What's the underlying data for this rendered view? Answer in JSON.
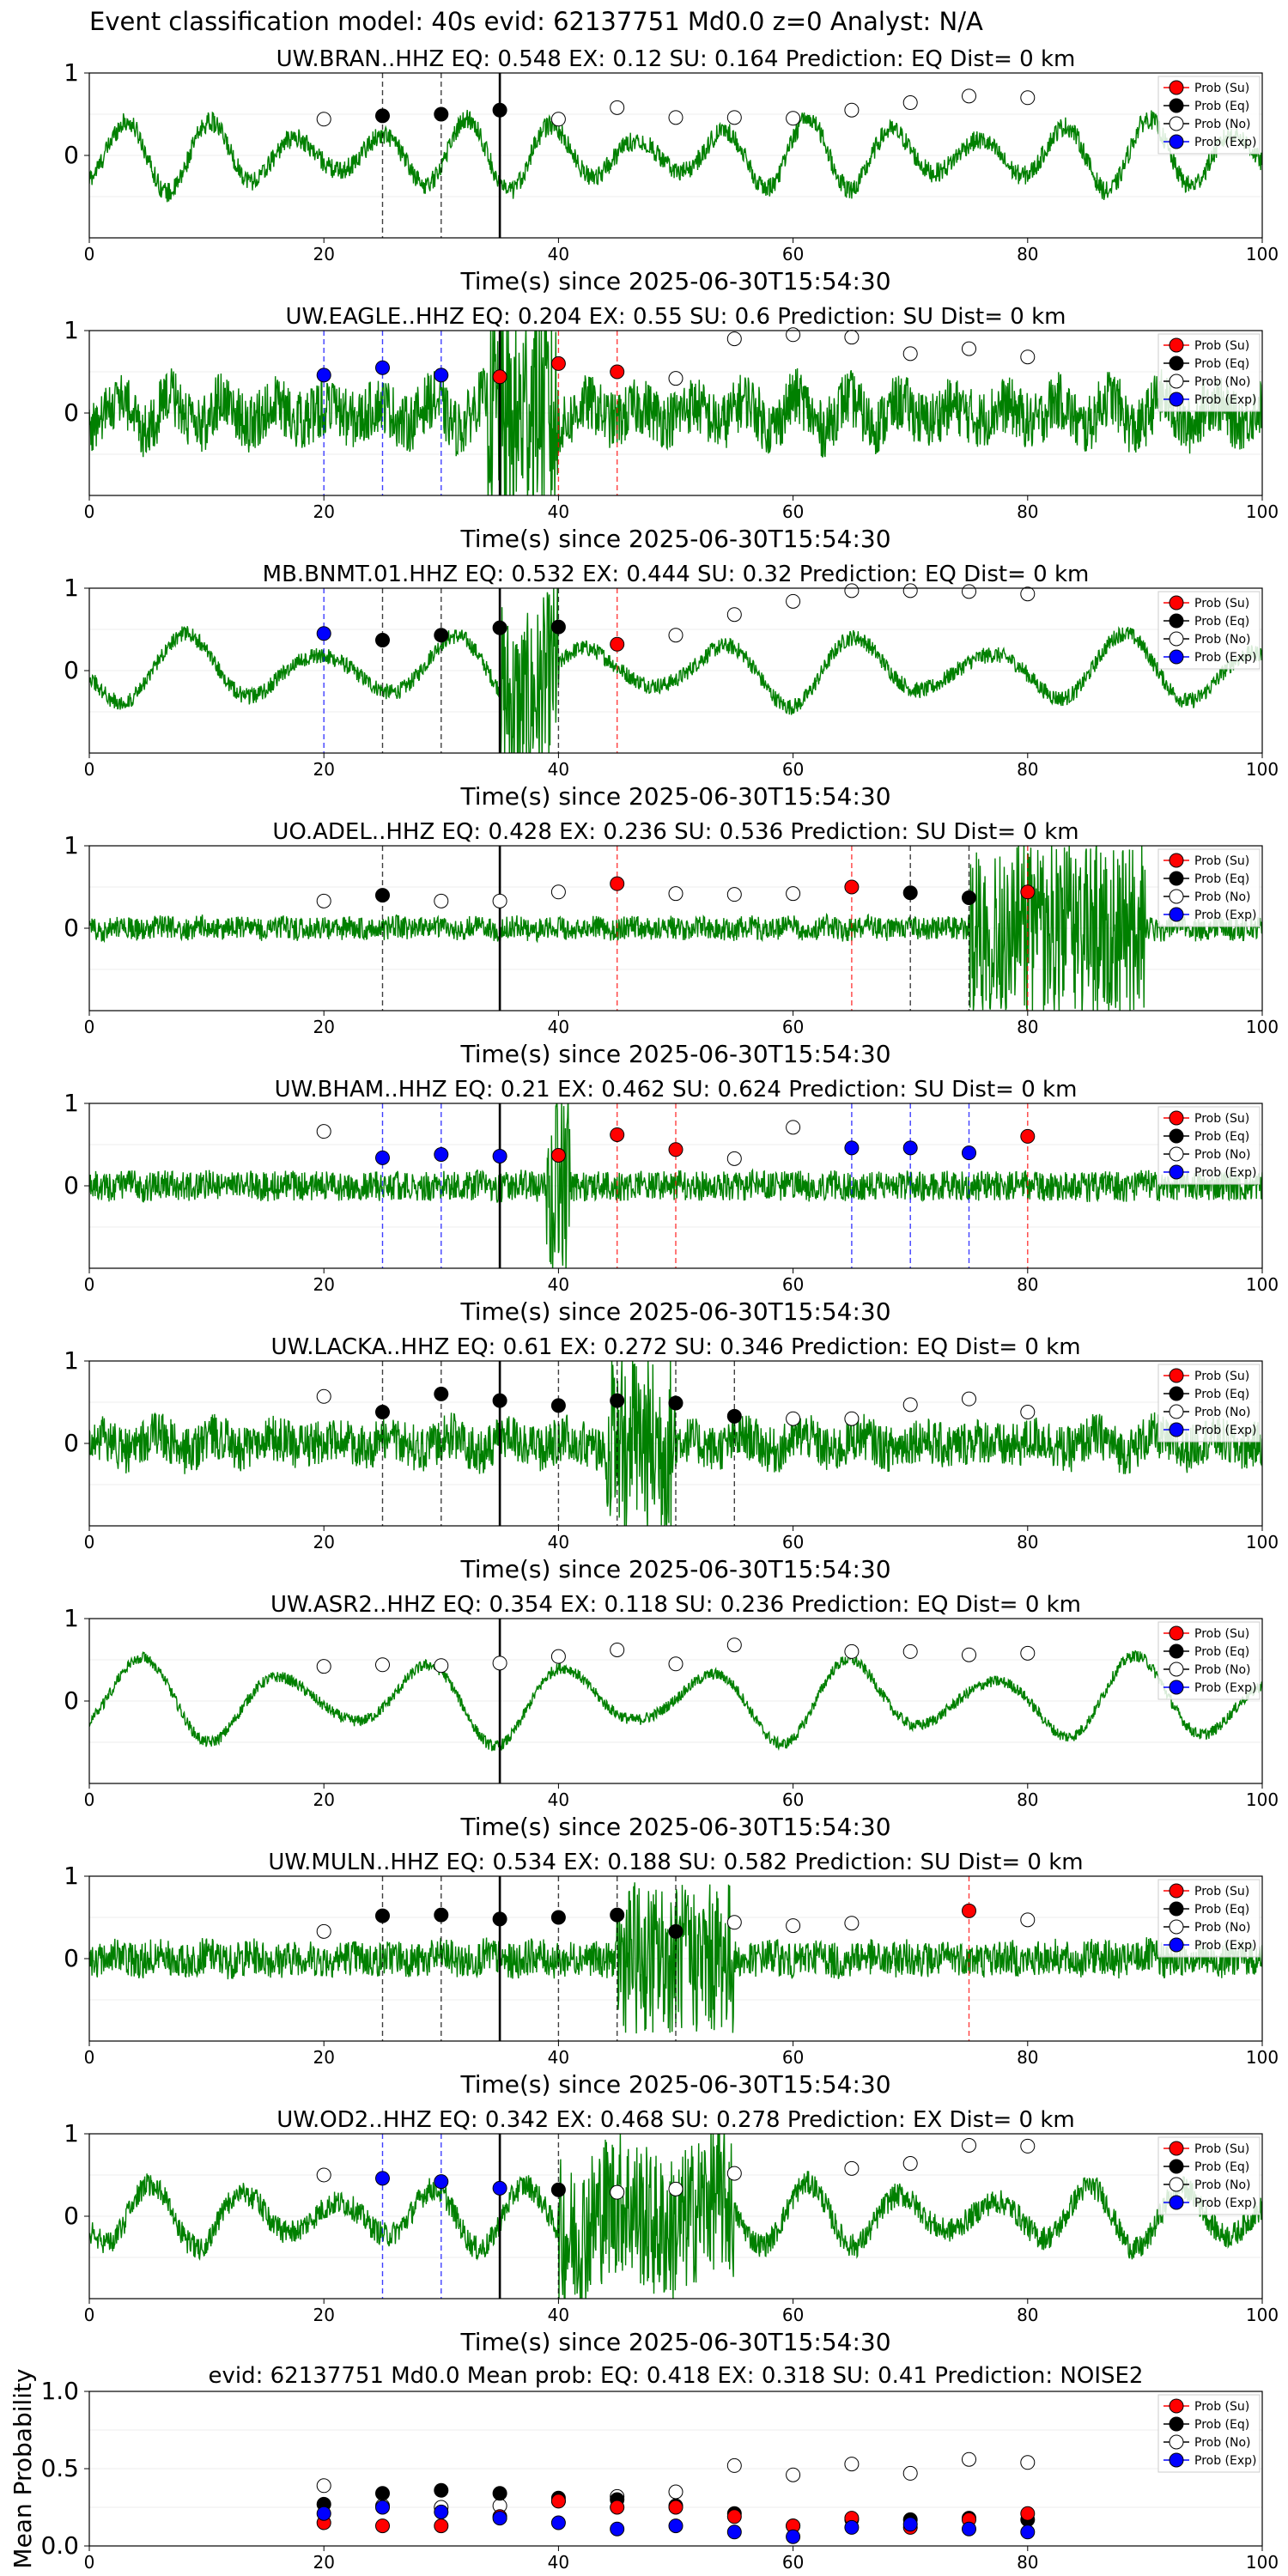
{
  "figure_title": "Event classification model: 40s evid: 62137751 Md0.0 z=0 Analyst: N/A",
  "colors": {
    "trace": "#008000",
    "su": "#ff0000",
    "eq": "#000000",
    "no": "#ffffff",
    "exp": "#0000ff",
    "event_line": "#000000"
  },
  "legend": [
    "Prob (Su)",
    "Prob (Eq)",
    "Prob (No)",
    "Prob (Exp)"
  ],
  "xlabel": "Time(s) since 2025-06-30T15:54:30",
  "xticks": [
    0,
    20,
    40,
    60,
    80,
    100
  ],
  "yticks": [
    "1",
    "0"
  ],
  "mean_ylabel": "Mean Probability",
  "mean_yticks": [
    "1.0",
    "0.5",
    "0.0"
  ],
  "chart_data": [
    {
      "type": "line",
      "title": "UW.BRAN..HHZ   EQ: 0.548  EX: 0.12  SU: 0.164   Prediction: EQ    Dist= 0 km",
      "xlim": [
        0,
        100
      ],
      "ylim": [
        -1,
        1
      ],
      "event_time": 35,
      "noise_amp": 0.12,
      "wave_amp": 0.45,
      "wave_freq": 0.55,
      "burst": null,
      "vlines": [
        {
          "x": 25,
          "cls": "eq"
        },
        {
          "x": 30,
          "cls": "eq"
        }
      ],
      "points": {
        "no": [
          [
            20,
            0.44
          ],
          [
            40,
            0.44
          ],
          [
            45,
            0.58
          ],
          [
            50,
            0.46
          ],
          [
            55,
            0.46
          ],
          [
            60,
            0.45
          ],
          [
            65,
            0.55
          ],
          [
            70,
            0.64
          ],
          [
            75,
            0.72
          ],
          [
            80,
            0.7
          ]
        ],
        "eq": [
          [
            25,
            0.48
          ],
          [
            30,
            0.5
          ],
          [
            35,
            0.55
          ]
        ],
        "su": [],
        "exp": []
      }
    },
    {
      "type": "line",
      "title": "UW.EAGLE..HHZ   EQ: 0.204  EX: 0.55  SU: 0.6   Prediction: SU    Dist= 0 km",
      "xlim": [
        0,
        100
      ],
      "ylim": [
        -1,
        1
      ],
      "event_time": 35,
      "noise_amp": 0.35,
      "wave_amp": 0.2,
      "wave_freq": 0.9,
      "burst": [
        34,
        40,
        1.0
      ],
      "vlines": [
        {
          "x": 20,
          "cls": "exp"
        },
        {
          "x": 25,
          "cls": "exp"
        },
        {
          "x": 30,
          "cls": "exp"
        },
        {
          "x": 40,
          "cls": "su"
        },
        {
          "x": 45,
          "cls": "su"
        }
      ],
      "points": {
        "no": [
          [
            50,
            0.42
          ],
          [
            55,
            0.9
          ],
          [
            60,
            0.95
          ],
          [
            65,
            0.92
          ],
          [
            70,
            0.72
          ],
          [
            75,
            0.78
          ],
          [
            80,
            0.68
          ]
        ],
        "eq": [],
        "su": [
          [
            35,
            0.44
          ],
          [
            40,
            0.6
          ],
          [
            45,
            0.5
          ]
        ],
        "exp": [
          [
            20,
            0.46
          ],
          [
            25,
            0.55
          ],
          [
            30,
            0.46
          ]
        ]
      }
    },
    {
      "type": "line",
      "title": "MB.BNMT.01.HHZ   EQ: 0.532  EX: 0.444  SU: 0.32   Prediction: EQ    Dist= 0 km",
      "xlim": [
        0,
        100
      ],
      "ylim": [
        -1,
        1
      ],
      "event_time": 35,
      "noise_amp": 0.1,
      "wave_amp": 0.45,
      "wave_freq": 0.35,
      "burst": [
        35,
        40,
        1.0
      ],
      "vlines": [
        {
          "x": 20,
          "cls": "exp"
        },
        {
          "x": 25,
          "cls": "eq"
        },
        {
          "x": 30,
          "cls": "eq"
        },
        {
          "x": 40,
          "cls": "eq"
        },
        {
          "x": 45,
          "cls": "su"
        }
      ],
      "points": {
        "no": [
          [
            50,
            0.43
          ],
          [
            55,
            0.68
          ],
          [
            60,
            0.84
          ],
          [
            65,
            0.97
          ],
          [
            70,
            0.97
          ],
          [
            75,
            0.96
          ],
          [
            80,
            0.93
          ]
        ],
        "eq": [
          [
            25,
            0.37
          ],
          [
            30,
            0.43
          ],
          [
            35,
            0.52
          ],
          [
            40,
            0.53
          ]
        ],
        "su": [
          [
            45,
            0.32
          ]
        ],
        "exp": [
          [
            20,
            0.45
          ]
        ]
      }
    },
    {
      "type": "line",
      "title": "UO.ADEL..HHZ   EQ: 0.428  EX: 0.236  SU: 0.536   Prediction: SU    Dist= 0 km",
      "xlim": [
        0,
        100
      ],
      "ylim": [
        -1,
        1
      ],
      "event_time": 35,
      "noise_amp": 0.14,
      "wave_amp": 0.03,
      "wave_freq": 1.2,
      "burst": [
        75,
        90,
        0.9
      ],
      "vlines": [
        {
          "x": 25,
          "cls": "eq"
        },
        {
          "x": 45,
          "cls": "su"
        },
        {
          "x": 65,
          "cls": "su"
        },
        {
          "x": 70,
          "cls": "eq"
        },
        {
          "x": 75,
          "cls": "eq"
        },
        {
          "x": 80,
          "cls": "su"
        }
      ],
      "points": {
        "no": [
          [
            20,
            0.33
          ],
          [
            30,
            0.33
          ],
          [
            35,
            0.33
          ],
          [
            40,
            0.44
          ],
          [
            50,
            0.42
          ],
          [
            55,
            0.41
          ],
          [
            60,
            0.42
          ]
        ],
        "eq": [
          [
            25,
            0.4
          ],
          [
            70,
            0.43
          ],
          [
            75,
            0.37
          ]
        ],
        "su": [
          [
            45,
            0.54
          ],
          [
            65,
            0.5
          ],
          [
            80,
            0.44
          ]
        ],
        "exp": []
      }
    },
    {
      "type": "line",
      "title": "UW.BHAM..HHZ   EQ: 0.21  EX: 0.462  SU: 0.624   Prediction: SU    Dist= 0 km",
      "xlim": [
        0,
        100
      ],
      "ylim": [
        -1,
        1
      ],
      "event_time": 35,
      "noise_amp": 0.18,
      "wave_amp": 0.02,
      "wave_freq": 1.2,
      "burst": [
        39,
        41,
        0.9
      ],
      "vlines": [
        {
          "x": 25,
          "cls": "exp"
        },
        {
          "x": 30,
          "cls": "exp"
        },
        {
          "x": 45,
          "cls": "su"
        },
        {
          "x": 50,
          "cls": "su"
        },
        {
          "x": 65,
          "cls": "exp"
        },
        {
          "x": 70,
          "cls": "exp"
        },
        {
          "x": 75,
          "cls": "exp"
        },
        {
          "x": 80,
          "cls": "su"
        }
      ],
      "points": {
        "no": [
          [
            20,
            0.66
          ],
          [
            55,
            0.33
          ],
          [
            60,
            0.71
          ]
        ],
        "eq": [],
        "su": [
          [
            40,
            0.37
          ],
          [
            45,
            0.62
          ],
          [
            50,
            0.44
          ],
          [
            80,
            0.6
          ]
        ],
        "exp": [
          [
            25,
            0.34
          ],
          [
            30,
            0.38
          ],
          [
            35,
            0.36
          ],
          [
            65,
            0.46
          ],
          [
            70,
            0.46
          ],
          [
            75,
            0.4
          ]
        ]
      }
    },
    {
      "type": "line",
      "title": "UW.LACKA..HHZ   EQ: 0.61  EX: 0.272  SU: 0.346   Prediction: EQ    Dist= 0 km",
      "xlim": [
        0,
        100
      ],
      "ylim": [
        -1,
        1
      ],
      "event_time": 35,
      "noise_amp": 0.28,
      "wave_amp": 0.1,
      "wave_freq": 0.8,
      "burst": [
        44,
        50,
        0.8
      ],
      "vlines": [
        {
          "x": 25,
          "cls": "eq"
        },
        {
          "x": 30,
          "cls": "eq"
        },
        {
          "x": 40,
          "cls": "eq"
        },
        {
          "x": 45,
          "cls": "eq"
        },
        {
          "x": 50,
          "cls": "eq"
        },
        {
          "x": 55,
          "cls": "eq"
        }
      ],
      "points": {
        "no": [
          [
            20,
            0.57
          ],
          [
            60,
            0.3
          ],
          [
            65,
            0.3
          ],
          [
            70,
            0.47
          ],
          [
            75,
            0.54
          ],
          [
            80,
            0.38
          ]
        ],
        "eq": [
          [
            25,
            0.38
          ],
          [
            30,
            0.6
          ],
          [
            35,
            0.52
          ],
          [
            40,
            0.46
          ],
          [
            45,
            0.52
          ],
          [
            50,
            0.49
          ],
          [
            55,
            0.33
          ]
        ],
        "su": [],
        "exp": []
      }
    },
    {
      "type": "line",
      "title": "UW.ASR2..HHZ   EQ: 0.354  EX: 0.118  SU: 0.236   Prediction: EQ    Dist= 0 km",
      "xlim": [
        0,
        100
      ],
      "ylim": [
        -1,
        1
      ],
      "event_time": 35,
      "noise_amp": 0.07,
      "wave_amp": 0.55,
      "wave_freq": 0.33,
      "burst": null,
      "vlines": [],
      "points": {
        "no": [
          [
            20,
            0.42
          ],
          [
            25,
            0.44
          ],
          [
            30,
            0.43
          ],
          [
            35,
            0.46
          ],
          [
            40,
            0.54
          ],
          [
            45,
            0.62
          ],
          [
            50,
            0.45
          ],
          [
            55,
            0.68
          ],
          [
            65,
            0.6
          ],
          [
            70,
            0.6
          ],
          [
            75,
            0.56
          ],
          [
            80,
            0.58
          ]
        ],
        "eq": [],
        "su": [],
        "exp": []
      }
    },
    {
      "type": "line",
      "title": "UW.MULN..HHZ   EQ: 0.534  EX: 0.188  SU: 0.582   Prediction: SU    Dist= 0 km",
      "xlim": [
        0,
        100
      ],
      "ylim": [
        -1,
        1
      ],
      "event_time": 35,
      "noise_amp": 0.22,
      "wave_amp": 0.04,
      "wave_freq": 1.0,
      "burst": [
        45,
        55,
        0.7
      ],
      "vlines": [
        {
          "x": 25,
          "cls": "eq"
        },
        {
          "x": 30,
          "cls": "eq"
        },
        {
          "x": 40,
          "cls": "eq"
        },
        {
          "x": 45,
          "cls": "eq"
        },
        {
          "x": 50,
          "cls": "eq"
        },
        {
          "x": 75,
          "cls": "su"
        }
      ],
      "points": {
        "no": [
          [
            20,
            0.33
          ],
          [
            55,
            0.44
          ],
          [
            60,
            0.4
          ],
          [
            65,
            0.43
          ],
          [
            80,
            0.47
          ]
        ],
        "eq": [
          [
            25,
            0.52
          ],
          [
            30,
            0.53
          ],
          [
            35,
            0.48
          ],
          [
            40,
            0.5
          ],
          [
            45,
            0.53
          ],
          [
            50,
            0.33
          ]
        ],
        "su": [
          [
            75,
            0.58
          ]
        ],
        "exp": []
      }
    },
    {
      "type": "line",
      "title": "UW.OD2..HHZ   EQ: 0.342  EX: 0.468  SU: 0.278   Prediction: EX    Dist= 0 km",
      "xlim": [
        0,
        100
      ],
      "ylim": [
        -1,
        1
      ],
      "event_time": 35,
      "noise_amp": 0.15,
      "wave_amp": 0.4,
      "wave_freq": 0.5,
      "burst": [
        40,
        55,
        0.75
      ],
      "vlines": [
        {
          "x": 25,
          "cls": "exp"
        },
        {
          "x": 30,
          "cls": "exp"
        },
        {
          "x": 40,
          "cls": "eq"
        }
      ],
      "points": {
        "no": [
          [
            20,
            0.5
          ],
          [
            45,
            0.29
          ],
          [
            50,
            0.33
          ],
          [
            55,
            0.52
          ],
          [
            65,
            0.58
          ],
          [
            70,
            0.64
          ],
          [
            75,
            0.86
          ],
          [
            80,
            0.85
          ]
        ],
        "eq": [
          [
            40,
            0.32
          ]
        ],
        "su": [],
        "exp": [
          [
            25,
            0.46
          ],
          [
            30,
            0.42
          ],
          [
            35,
            0.34
          ]
        ]
      }
    },
    {
      "type": "scatter",
      "title": "evid: 62137751  Md0.0   Mean prob:    EQ: 0.418  EX: 0.318  SU: 0.41   Prediction: NOISE2",
      "xlim": [
        0,
        100
      ],
      "ylim": [
        0,
        1
      ],
      "ylabel": "Mean Probability",
      "points": {
        "no": [
          [
            20,
            0.39
          ],
          [
            25,
            0.26
          ],
          [
            30,
            0.25
          ],
          [
            35,
            0.26
          ],
          [
            40,
            0.29
          ],
          [
            45,
            0.32
          ],
          [
            50,
            0.35
          ],
          [
            55,
            0.52
          ],
          [
            60,
            0.46
          ],
          [
            65,
            0.53
          ],
          [
            70,
            0.47
          ],
          [
            75,
            0.56
          ],
          [
            80,
            0.54
          ]
        ],
        "eq": [
          [
            20,
            0.27
          ],
          [
            25,
            0.34
          ],
          [
            30,
            0.36
          ],
          [
            35,
            0.34
          ],
          [
            40,
            0.31
          ],
          [
            45,
            0.3
          ],
          [
            50,
            0.26
          ],
          [
            55,
            0.21
          ],
          [
            60,
            0.13
          ],
          [
            65,
            0.17
          ],
          [
            70,
            0.17
          ],
          [
            75,
            0.18
          ],
          [
            80,
            0.17
          ]
        ],
        "su": [
          [
            20,
            0.15
          ],
          [
            25,
            0.13
          ],
          [
            30,
            0.13
          ],
          [
            35,
            0.19
          ],
          [
            40,
            0.29
          ],
          [
            45,
            0.25
          ],
          [
            50,
            0.25
          ],
          [
            55,
            0.19
          ],
          [
            60,
            0.13
          ],
          [
            65,
            0.18
          ],
          [
            70,
            0.12
          ],
          [
            75,
            0.17
          ],
          [
            80,
            0.21
          ]
        ],
        "exp": [
          [
            20,
            0.21
          ],
          [
            25,
            0.25
          ],
          [
            30,
            0.22
          ],
          [
            35,
            0.18
          ],
          [
            40,
            0.15
          ],
          [
            45,
            0.11
          ],
          [
            50,
            0.13
          ],
          [
            55,
            0.09
          ],
          [
            60,
            0.06
          ],
          [
            65,
            0.12
          ],
          [
            70,
            0.14
          ],
          [
            75,
            0.11
          ],
          [
            80,
            0.09
          ]
        ]
      }
    }
  ]
}
